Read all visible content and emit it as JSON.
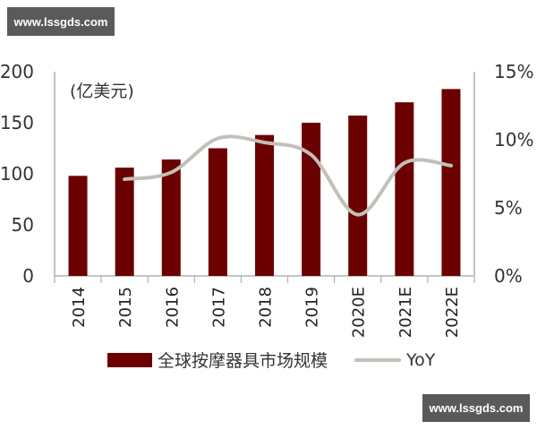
{
  "watermarks": {
    "top": "www.lssgds.com",
    "bottom": "www.lssgds.com"
  },
  "colors": {
    "bar": "#6b0000",
    "line": "#c2c0b8",
    "axis": "#b0b0b0"
  },
  "chart_data": {
    "type": "bar",
    "title": "",
    "unit_label": "(亿美元)",
    "categories": [
      "2014",
      "2015",
      "2016",
      "2017",
      "2018",
      "2019",
      "2020E",
      "2021E",
      "2022E"
    ],
    "series": [
      {
        "name": "全球按摩器具市场规模",
        "type": "bar",
        "axis": "left",
        "values": [
          98,
          106,
          114,
          125,
          138,
          150,
          157,
          170,
          183
        ]
      },
      {
        "name": "YoY",
        "type": "line",
        "axis": "right",
        "values": [
          null,
          7.1,
          7.6,
          10.1,
          9.8,
          8.9,
          4.5,
          8.3,
          8.1
        ]
      }
    ],
    "y_left": {
      "ticks": [
        "0",
        "50",
        "100",
        "150",
        "200"
      ],
      "ylim": [
        0,
        200
      ]
    },
    "y_right": {
      "ticks": [
        "0%",
        "5%",
        "10%",
        "15%"
      ],
      "ylim": [
        0,
        15
      ]
    },
    "xlabel": "",
    "ylabel": "(亿美元)",
    "legend": {
      "position": "bottom",
      "entries": [
        "全球按摩器具市场规模",
        "YoY"
      ]
    },
    "grid": false
  }
}
